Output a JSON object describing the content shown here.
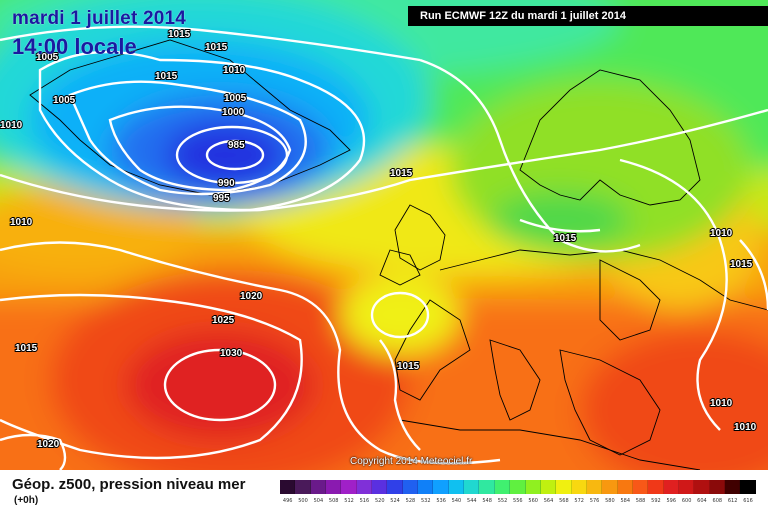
{
  "header": {
    "date": "mardi 1 juillet 2014",
    "time": "14:00 locale",
    "run": "Run ECMWF 12Z du mardi 1 juillet 2014"
  },
  "copyright": "Copyright 2014 Meteociel.fr",
  "footer": {
    "title": "Géop. z500, pression niveau mer",
    "subtitle": "(+0h)"
  },
  "legend": {
    "values": [
      "496",
      "500",
      "504",
      "508",
      "512",
      "516",
      "520",
      "524",
      "528",
      "532",
      "536",
      "540",
      "544",
      "548",
      "552",
      "556",
      "560",
      "564",
      "568",
      "572",
      "576",
      "580",
      "584",
      "588",
      "592",
      "596",
      "600",
      "604",
      "608",
      "612",
      "616"
    ],
    "colors": [
      "#2a0a30",
      "#4a1a5a",
      "#6a1a8a",
      "#8a1ab0",
      "#a020c8",
      "#8030d8",
      "#5a30e0",
      "#3040e8",
      "#2060f0",
      "#1080f8",
      "#10a0ff",
      "#10c0f0",
      "#20d8d0",
      "#30e8a0",
      "#40f070",
      "#60f040",
      "#90f020",
      "#c0f010",
      "#f0f010",
      "#f8d810",
      "#f8b810",
      "#f89810",
      "#f87810",
      "#f85818",
      "#f03818",
      "#e02020",
      "#d01818",
      "#b01010",
      "#8a0a0a",
      "#400000",
      "#000000"
    ]
  },
  "isobars": [
    {
      "label": "1015",
      "color": "#ffffff"
    },
    {
      "label": "1015",
      "color": "#ffffff"
    },
    {
      "label": "1010",
      "color": "#ffffff"
    },
    {
      "label": "1005",
      "color": "#ffffff"
    },
    {
      "label": "1005",
      "color": "#ffffff"
    },
    {
      "label": "1010",
      "color": "#ffffff"
    },
    {
      "label": "1005",
      "color": "#ffffff"
    },
    {
      "label": "1000",
      "color": "#ffffff"
    },
    {
      "label": "1015",
      "color": "#ffffff"
    },
    {
      "label": "985",
      "color": "#ffffff"
    },
    {
      "label": "990",
      "color": "#ffffff"
    },
    {
      "label": "995",
      "color": "#ffffff"
    },
    {
      "label": "1015",
      "color": "#ffffff"
    },
    {
      "label": "1015",
      "color": "#ffffff"
    },
    {
      "label": "1010",
      "color": "#ffffff"
    },
    {
      "label": "1010",
      "color": "#ffffff"
    },
    {
      "label": "1015",
      "color": "#ffffff"
    },
    {
      "label": "1020",
      "color": "#ffffff"
    },
    {
      "label": "1025",
      "color": "#ffffff"
    },
    {
      "label": "1030",
      "color": "#ffffff"
    },
    {
      "label": "1015",
      "color": "#ffffff"
    },
    {
      "label": "1015",
      "color": "#ffffff"
    },
    {
      "label": "1020",
      "color": "#ffffff"
    },
    {
      "label": "1010",
      "color": "#ffffff"
    },
    {
      "label": "1010",
      "color": "#ffffff"
    }
  ]
}
